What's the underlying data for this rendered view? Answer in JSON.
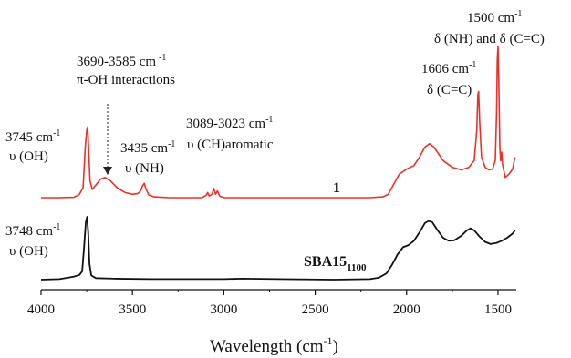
{
  "chart_data": {
    "type": "line",
    "title": "",
    "xlabel": "Wavelength (cm",
    "xlabel_sup": "-1",
    "xlabel_close": ")",
    "ylabel": "",
    "xlim": [
      4000,
      1400
    ],
    "x_reversed": true,
    "grid": false,
    "xticks": [
      "4000",
      "3500",
      "3000",
      "2500",
      "2000",
      "1500"
    ],
    "series": [
      {
        "name": "1",
        "color": "#e8322b",
        "points": [
          [
            4000,
            0.0
          ],
          [
            3900,
            0.0
          ],
          [
            3820,
            0.002
          ],
          [
            3790,
            0.02
          ],
          [
            3770,
            0.06
          ],
          [
            3758,
            0.3
          ],
          [
            3750,
            0.4
          ],
          [
            3745,
            0.42
          ],
          [
            3740,
            0.3
          ],
          [
            3732,
            0.1
          ],
          [
            3720,
            0.05
          ],
          [
            3700,
            0.075
          ],
          [
            3675,
            0.11
          ],
          [
            3650,
            0.12
          ],
          [
            3620,
            0.1
          ],
          [
            3585,
            0.06
          ],
          [
            3540,
            0.03
          ],
          [
            3500,
            0.02
          ],
          [
            3470,
            0.025
          ],
          [
            3455,
            0.04
          ],
          [
            3445,
            0.07
          ],
          [
            3435,
            0.085
          ],
          [
            3425,
            0.05
          ],
          [
            3410,
            0.015
          ],
          [
            3380,
            0.005
          ],
          [
            3300,
            0.0
          ],
          [
            3120,
            0.0
          ],
          [
            3095,
            0.015
          ],
          [
            3089,
            0.03
          ],
          [
            3080,
            0.01
          ],
          [
            3065,
            0.02
          ],
          [
            3055,
            0.055
          ],
          [
            3045,
            0.02
          ],
          [
            3035,
            0.04
          ],
          [
            3023,
            0.01
          ],
          [
            3000,
            0.0
          ],
          [
            2500,
            0.0
          ],
          [
            2200,
            0.0
          ],
          [
            2130,
            0.005
          ],
          [
            2100,
            0.02
          ],
          [
            2070,
            0.08
          ],
          [
            2040,
            0.14
          ],
          [
            2000,
            0.17
          ],
          [
            1960,
            0.19
          ],
          [
            1930,
            0.24
          ],
          [
            1900,
            0.3
          ],
          [
            1875,
            0.32
          ],
          [
            1850,
            0.3
          ],
          [
            1800,
            0.22
          ],
          [
            1750,
            0.18
          ],
          [
            1700,
            0.165
          ],
          [
            1660,
            0.18
          ],
          [
            1630,
            0.22
          ],
          [
            1616,
            0.4
          ],
          [
            1610,
            0.61
          ],
          [
            1606,
            0.63
          ],
          [
            1600,
            0.45
          ],
          [
            1590,
            0.24
          ],
          [
            1570,
            0.18
          ],
          [
            1550,
            0.165
          ],
          [
            1530,
            0.17
          ],
          [
            1515,
            0.22
          ],
          [
            1508,
            0.5
          ],
          [
            1504,
            0.82
          ],
          [
            1500,
            0.9
          ],
          [
            1496,
            0.7
          ],
          [
            1490,
            0.3
          ],
          [
            1486,
            0.22
          ],
          [
            1480,
            0.27
          ],
          [
            1476,
            0.2
          ],
          [
            1460,
            0.12
          ],
          [
            1440,
            0.14
          ],
          [
            1420,
            0.17
          ],
          [
            1407,
            0.24
          ]
        ]
      },
      {
        "name": "SBA15",
        "color": "#111111",
        "points": [
          [
            4000,
            0.0
          ],
          [
            3900,
            0.005
          ],
          [
            3850,
            0.02
          ],
          [
            3820,
            0.03
          ],
          [
            3790,
            0.045
          ],
          [
            3775,
            0.08
          ],
          [
            3765,
            0.3
          ],
          [
            3755,
            0.55
          ],
          [
            3748,
            0.6
          ],
          [
            3742,
            0.45
          ],
          [
            3735,
            0.15
          ],
          [
            3725,
            0.04
          ],
          [
            3700,
            0.015
          ],
          [
            3600,
            0.01
          ],
          [
            3400,
            0.005
          ],
          [
            3000,
            0.005
          ],
          [
            2900,
            0.01
          ],
          [
            2700,
            0.005
          ],
          [
            2400,
            0.0
          ],
          [
            2200,
            0.005
          ],
          [
            2150,
            0.02
          ],
          [
            2110,
            0.06
          ],
          [
            2080,
            0.14
          ],
          [
            2050,
            0.24
          ],
          [
            2020,
            0.31
          ],
          [
            1990,
            0.33
          ],
          [
            1960,
            0.37
          ],
          [
            1930,
            0.45
          ],
          [
            1900,
            0.54
          ],
          [
            1880,
            0.56
          ],
          [
            1860,
            0.55
          ],
          [
            1830,
            0.47
          ],
          [
            1800,
            0.4
          ],
          [
            1770,
            0.37
          ],
          [
            1740,
            0.375
          ],
          [
            1700,
            0.42
          ],
          [
            1670,
            0.47
          ],
          [
            1650,
            0.49
          ],
          [
            1630,
            0.47
          ],
          [
            1600,
            0.41
          ],
          [
            1570,
            0.36
          ],
          [
            1540,
            0.34
          ],
          [
            1510,
            0.35
          ],
          [
            1480,
            0.37
          ],
          [
            1450,
            0.4
          ],
          [
            1420,
            0.44
          ],
          [
            1407,
            0.47
          ]
        ]
      }
    ]
  },
  "labels": {
    "red_oh_1": "3745 cm",
    "red_oh_1_sup": "-1",
    "red_oh_2": "υ (OH)",
    "pi_1": "3690-3585 cm",
    "pi_1_sup": "-1",
    "pi_2": "π-OH interactions",
    "nh_1": "3435 cm",
    "nh_1_sup": "-1",
    "nh_2": "υ (NH)",
    "ch_1": "3089-3023 cm",
    "ch_1_sup": "-1",
    "ch_2": "υ (CH)aromatic",
    "cc_1": "1606 cm",
    "cc_1_sup": "-1",
    "cc_2": "δ (C=C)",
    "nhcc_1": "1500 cm",
    "nhcc_1_sup": "-1",
    "nhcc_2": "δ (NH) and δ (C=C)",
    "black_oh_1": "3748 cm",
    "black_oh_1_sup": "-1",
    "black_oh_2": "υ (OH)",
    "sample_1": "1",
    "sample_sba": "SBA15",
    "sample_sba_sub": "1100"
  }
}
